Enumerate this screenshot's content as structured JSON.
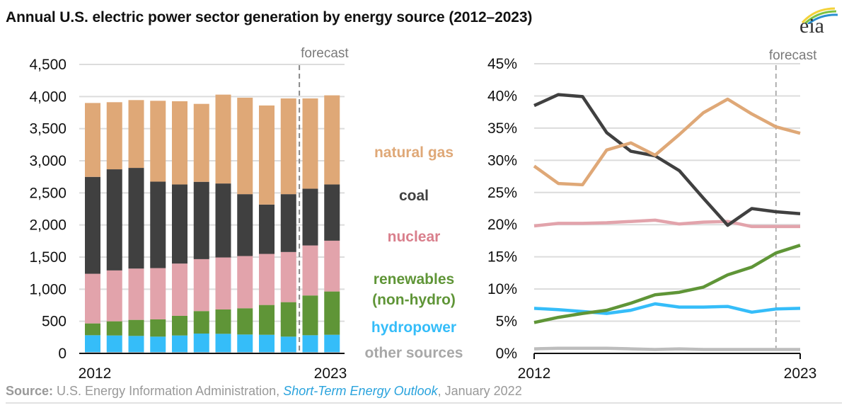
{
  "title": "Annual U.S. electric power sector generation by energy source (2012–2023)",
  "logo": {
    "icon": "eia-logo-icon",
    "text": "eia"
  },
  "source": {
    "label": "Source:",
    "org": " U.S. Energy Information Administration, ",
    "publication": "Short-Term Energy Outlook",
    "date": ", January 2022"
  },
  "colors": {
    "natural_gas": "#dfa877",
    "coal": "#404040",
    "nuclear": "#e2a3ab",
    "renewables": "#5f9537",
    "hydropower": "#35bdf9",
    "other": "#bdbdbd"
  },
  "legend": [
    {
      "key": "natural_gas",
      "lines": [
        "natural gas"
      ],
      "color": "#dfa877"
    },
    {
      "key": "coal",
      "lines": [
        "coal"
      ],
      "color": "#404040"
    },
    {
      "key": "nuclear",
      "lines": [
        "nuclear"
      ],
      "color": "#d97f8c"
    },
    {
      "key": "renewables",
      "lines": [
        "renewables",
        "(non-hydro)"
      ],
      "color": "#5f9537"
    },
    {
      "key": "hydropower",
      "lines": [
        "hydropower"
      ],
      "color": "#35bdf9"
    },
    {
      "key": "other",
      "lines": [
        "other sources"
      ],
      "color": "#a8a8a8"
    }
  ],
  "chart_data": [
    {
      "type": "bar",
      "stacked": true,
      "title": "Annual U.S. electric power sector generation (billion kWh)",
      "xlabel": "",
      "ylabel": "",
      "categories": [
        "2012",
        "2013",
        "2014",
        "2015",
        "2016",
        "2017",
        "2018",
        "2019",
        "2020",
        "2021",
        "2022",
        "2023"
      ],
      "x_tick_labels": [
        "2012",
        "2023"
      ],
      "y_tick_labels": [
        "0",
        "500",
        "1,000",
        "1,500",
        "2,000",
        "2,500",
        "3,000",
        "3,500",
        "4,000",
        "4,500"
      ],
      "ylim": [
        0,
        4500
      ],
      "grid": true,
      "forecast_label": "forecast",
      "forecast_start_after": "2021",
      "series": [
        {
          "name": "other sources",
          "key": "other",
          "values": [
            20,
            20,
            20,
            20,
            20,
            20,
            20,
            20,
            20,
            20,
            20,
            20
          ]
        },
        {
          "name": "hydropower",
          "key": "hydropower",
          "values": [
            263,
            259,
            252,
            241,
            259,
            289,
            285,
            274,
            270,
            241,
            263,
            270
          ]
        },
        {
          "name": "renewables (non-hydro)",
          "key": "renewables",
          "values": [
            184,
            221,
            250,
            269,
            306,
            350,
            379,
            409,
            464,
            537,
            619,
            674
          ]
        },
        {
          "name": "nuclear",
          "key": "nuclear",
          "values": [
            773,
            792,
            799,
            798,
            814,
            809,
            810,
            813,
            795,
            781,
            779,
            791
          ]
        },
        {
          "name": "coal",
          "key": "coal",
          "values": [
            1509,
            1575,
            1568,
            1347,
            1232,
            1204,
            1152,
            964,
            769,
            901,
            884,
            876
          ]
        },
        {
          "name": "natural gas",
          "key": "natural_gas",
          "values": [
            1151,
            1045,
            1056,
            1259,
            1296,
            1214,
            1384,
            1502,
            1543,
            1491,
            1406,
            1388
          ]
        }
      ]
    },
    {
      "type": "line",
      "title": "Share of U.S. electric power sector generation",
      "xlabel": "",
      "ylabel": "",
      "x": [
        "2012",
        "2013",
        "2014",
        "2015",
        "2016",
        "2017",
        "2018",
        "2019",
        "2020",
        "2021",
        "2022",
        "2023"
      ],
      "x_tick_labels": [
        "2012",
        "2023"
      ],
      "y_tick_labels": [
        "0%",
        "5%",
        "10%",
        "15%",
        "20%",
        "25%",
        "30%",
        "35%",
        "40%",
        "45%"
      ],
      "ylim": [
        0,
        45
      ],
      "grid": true,
      "forecast_label": "forecast",
      "forecast_at": "2022",
      "series": [
        {
          "name": "other sources",
          "key": "other",
          "values": [
            0.7,
            0.8,
            0.8,
            0.8,
            0.7,
            0.6,
            0.7,
            0.6,
            0.6,
            0.6,
            0.6,
            0.6
          ]
        },
        {
          "name": "hydropower",
          "key": "hydropower",
          "values": [
            7.0,
            6.8,
            6.5,
            6.2,
            6.7,
            7.7,
            7.2,
            7.2,
            7.3,
            6.4,
            6.9,
            7.0
          ]
        },
        {
          "name": "renewables (non-hydro)",
          "key": "renewables",
          "values": [
            4.8,
            5.6,
            6.2,
            6.7,
            7.8,
            9.1,
            9.5,
            10.3,
            12.2,
            13.4,
            15.6,
            16.8
          ]
        },
        {
          "name": "nuclear",
          "key": "nuclear",
          "values": [
            19.8,
            20.2,
            20.2,
            20.3,
            20.5,
            20.7,
            20.1,
            20.4,
            20.5,
            19.7,
            19.7,
            19.7
          ]
        },
        {
          "name": "coal",
          "key": "coal",
          "values": [
            38.5,
            40.2,
            39.9,
            34.3,
            31.4,
            30.7,
            28.4,
            24.1,
            19.9,
            22.5,
            22.0,
            21.7
          ]
        },
        {
          "name": "natural gas",
          "key": "natural_gas",
          "values": [
            29.1,
            26.4,
            26.2,
            31.6,
            32.7,
            30.8,
            34.0,
            37.4,
            39.5,
            37.2,
            35.2,
            34.2
          ]
        }
      ]
    }
  ]
}
